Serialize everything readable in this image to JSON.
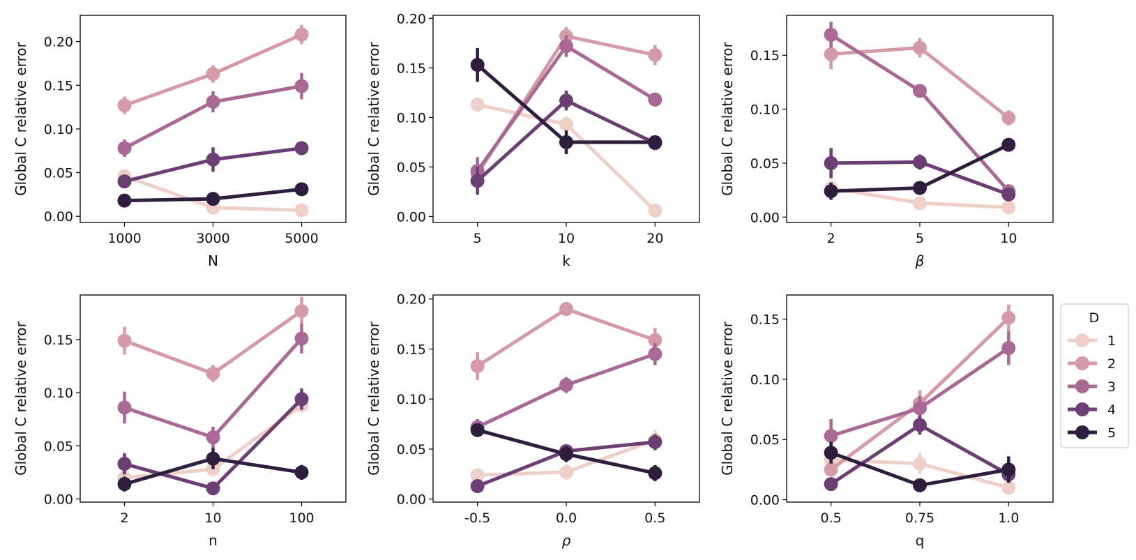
{
  "legend": {
    "title": "D",
    "entries": [
      {
        "label": "1",
        "color": "#efd0c8"
      },
      {
        "label": "2",
        "color": "#d49aa7"
      },
      {
        "label": "3",
        "color": "#a86a94"
      },
      {
        "label": "4",
        "color": "#6b3f73"
      },
      {
        "label": "5",
        "color": "#2d1e3e"
      }
    ]
  },
  "chart_data": [
    {
      "type": "line",
      "xlabel": "N",
      "ylabel": "Global C relative error",
      "categories": [
        "1000",
        "3000",
        "5000"
      ],
      "ylim": [
        -0.007,
        0.23
      ],
      "yticks": [
        "0.00",
        "0.05",
        "0.10",
        "0.15",
        "0.20"
      ],
      "series": [
        {
          "name": "1",
          "values": [
            0.046,
            0.01,
            0.007
          ],
          "errors": [
            0.004,
            0.002,
            0.002
          ]
        },
        {
          "name": "2",
          "values": [
            0.127,
            0.163,
            0.208
          ],
          "errors": [
            0.01,
            0.01,
            0.011
          ]
        },
        {
          "name": "3",
          "values": [
            0.078,
            0.131,
            0.149
          ],
          "errors": [
            0.01,
            0.012,
            0.015
          ]
        },
        {
          "name": "4",
          "values": [
            0.04,
            0.065,
            0.078
          ],
          "errors": [
            0.007,
            0.014,
            0.008
          ]
        },
        {
          "name": "5",
          "values": [
            0.018,
            0.02,
            0.031
          ],
          "errors": [
            0.007,
            0.002,
            0.003
          ]
        }
      ]
    },
    {
      "type": "line",
      "xlabel": "k",
      "ylabel": "Global C relative error",
      "categories": [
        "5",
        "10",
        "20"
      ],
      "ylim": [
        -0.006,
        0.203
      ],
      "yticks": [
        "0.00",
        "0.05",
        "0.10",
        "0.15",
        "0.20"
      ],
      "series": [
        {
          "name": "1",
          "values": [
            0.113,
            0.093,
            0.006
          ],
          "errors": [
            0.007,
            0.008,
            0.002
          ]
        },
        {
          "name": "2",
          "values": [
            0.043,
            0.182,
            0.163
          ],
          "errors": [
            0.01,
            0.009,
            0.01
          ]
        },
        {
          "name": "3",
          "values": [
            0.046,
            0.172,
            0.118
          ],
          "errors": [
            0.014,
            0.011,
            0.007
          ]
        },
        {
          "name": "4",
          "values": [
            0.036,
            0.117,
            0.074
          ],
          "errors": [
            0.014,
            0.01,
            0.005
          ]
        },
        {
          "name": "5",
          "values": [
            0.153,
            0.075,
            0.075
          ],
          "errors": [
            0.017,
            0.012,
            0.005
          ]
        }
      ]
    },
    {
      "type": "line",
      "xlabel": "β",
      "ylabel": "Global C relative error",
      "categories": [
        "2",
        "5",
        "10"
      ],
      "ylim": [
        -0.005,
        0.187
      ],
      "yticks": [
        "0.00",
        "0.05",
        "0.10",
        "0.15"
      ],
      "series": [
        {
          "name": "1",
          "values": [
            0.027,
            0.013,
            0.009
          ],
          "errors": [
            0.004,
            0.005,
            0.002
          ]
        },
        {
          "name": "2",
          "values": [
            0.151,
            0.157,
            0.092
          ],
          "errors": [
            0.014,
            0.009,
            0.007
          ]
        },
        {
          "name": "3",
          "values": [
            0.169,
            0.117,
            0.024
          ],
          "errors": [
            0.012,
            0.005,
            0.003
          ]
        },
        {
          "name": "4",
          "values": [
            0.05,
            0.051,
            0.021
          ],
          "errors": [
            0.014,
            0.007,
            0.003
          ]
        },
        {
          "name": "5",
          "values": [
            0.024,
            0.027,
            0.067
          ],
          "errors": [
            0.008,
            0.004,
            0.002
          ]
        }
      ]
    },
    {
      "type": "line",
      "xlabel": "n",
      "ylabel": "Global C relative error",
      "categories": [
        "2",
        "10",
        "100"
      ],
      "ylim": [
        -0.003,
        0.192
      ],
      "yticks": [
        "0.00",
        "0.05",
        "0.10",
        "0.15"
      ],
      "series": [
        {
          "name": "1",
          "values": [
            0.02,
            0.028,
            0.088
          ],
          "errors": [
            0.004,
            0.004,
            0.006
          ]
        },
        {
          "name": "2",
          "values": [
            0.149,
            0.118,
            0.177
          ],
          "errors": [
            0.013,
            0.008,
            0.013
          ]
        },
        {
          "name": "3",
          "values": [
            0.086,
            0.058,
            0.151
          ],
          "errors": [
            0.015,
            0.01,
            0.014
          ]
        },
        {
          "name": "4",
          "values": [
            0.033,
            0.01,
            0.094
          ],
          "errors": [
            0.01,
            0.003,
            0.01
          ]
        },
        {
          "name": "5",
          "values": [
            0.014,
            0.038,
            0.025
          ],
          "errors": [
            0.007,
            0.01,
            0.007
          ]
        }
      ]
    },
    {
      "type": "line",
      "xlabel": "ρ",
      "ylabel": "Global C relative error",
      "categories": [
        "-0.5",
        "0.0",
        "0.5"
      ],
      "ylim": [
        -0.003,
        0.204
      ],
      "yticks": [
        "0.00",
        "0.05",
        "0.10",
        "0.15",
        "0.20"
      ],
      "series": [
        {
          "name": "1",
          "values": [
            0.024,
            0.027,
            0.059
          ],
          "errors": [
            0.006,
            0.008,
            0.01
          ]
        },
        {
          "name": "2",
          "values": [
            0.133,
            0.19,
            0.159
          ],
          "errors": [
            0.014,
            0.007,
            0.012
          ]
        },
        {
          "name": "3",
          "values": [
            0.072,
            0.114,
            0.145
          ],
          "errors": [
            0.008,
            0.008,
            0.011
          ]
        },
        {
          "name": "4",
          "values": [
            0.013,
            0.048,
            0.057
          ],
          "errors": [
            0.005,
            0.005,
            0.008
          ]
        },
        {
          "name": "5",
          "values": [
            0.069,
            0.045,
            0.026
          ],
          "errors": [
            0.005,
            0.008,
            0.008
          ]
        }
      ]
    },
    {
      "type": "line",
      "xlabel": "q",
      "ylabel": "Global C relative error",
      "categories": [
        "0.5",
        "0.75",
        "1.0"
      ],
      "ylim": [
        -0.002,
        0.17
      ],
      "yticks": [
        "0.00",
        "0.05",
        "0.10",
        "0.15"
      ],
      "series": [
        {
          "name": "1",
          "values": [
            0.033,
            0.03,
            0.01
          ],
          "errors": [
            0.004,
            0.009,
            0.002
          ]
        },
        {
          "name": "2",
          "values": [
            0.025,
            0.08,
            0.151
          ],
          "errors": [
            0.005,
            0.011,
            0.011
          ]
        },
        {
          "name": "3",
          "values": [
            0.053,
            0.076,
            0.126
          ],
          "errors": [
            0.014,
            0.01,
            0.014
          ]
        },
        {
          "name": "4",
          "values": [
            0.013,
            0.062,
            0.021
          ],
          "errors": [
            0.005,
            0.008,
            0.004
          ]
        },
        {
          "name": "5",
          "values": [
            0.039,
            0.012,
            0.025
          ],
          "errors": [
            0.009,
            0.004,
            0.011
          ]
        }
      ]
    }
  ]
}
